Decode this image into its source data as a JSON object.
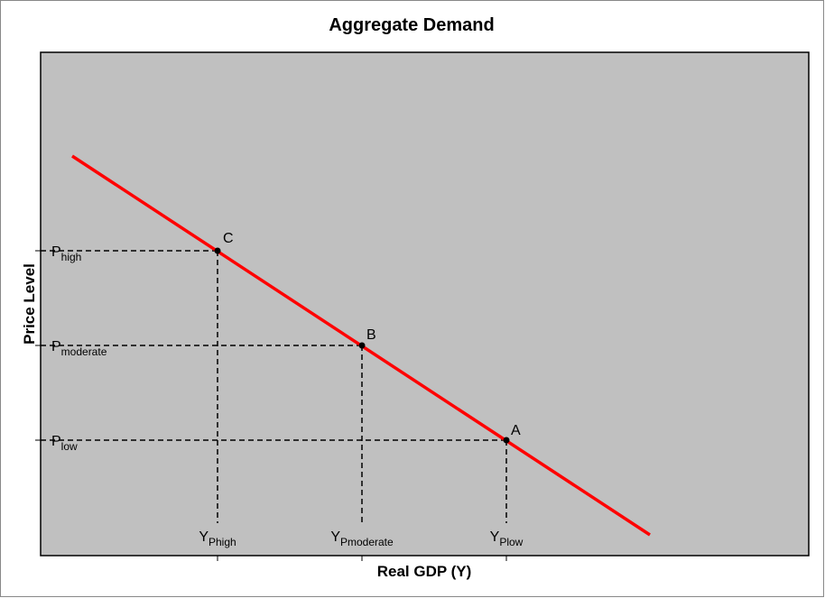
{
  "header": {
    "title": "Aggregate Demand"
  },
  "axes": {
    "y_label": "Price Level",
    "x_label": "Real GDP (Y)"
  },
  "price_levels": [
    {
      "main": "P",
      "sub": "high"
    },
    {
      "main": "P",
      "sub": "moderate"
    },
    {
      "main": "P",
      "sub": "low"
    }
  ],
  "output_levels": [
    {
      "main": "Y",
      "sub": "Phigh"
    },
    {
      "main": "Y",
      "sub": "Pmoderate"
    },
    {
      "main": "Y",
      "sub": "Plow"
    }
  ],
  "points": [
    "C",
    "B",
    "A"
  ]
}
